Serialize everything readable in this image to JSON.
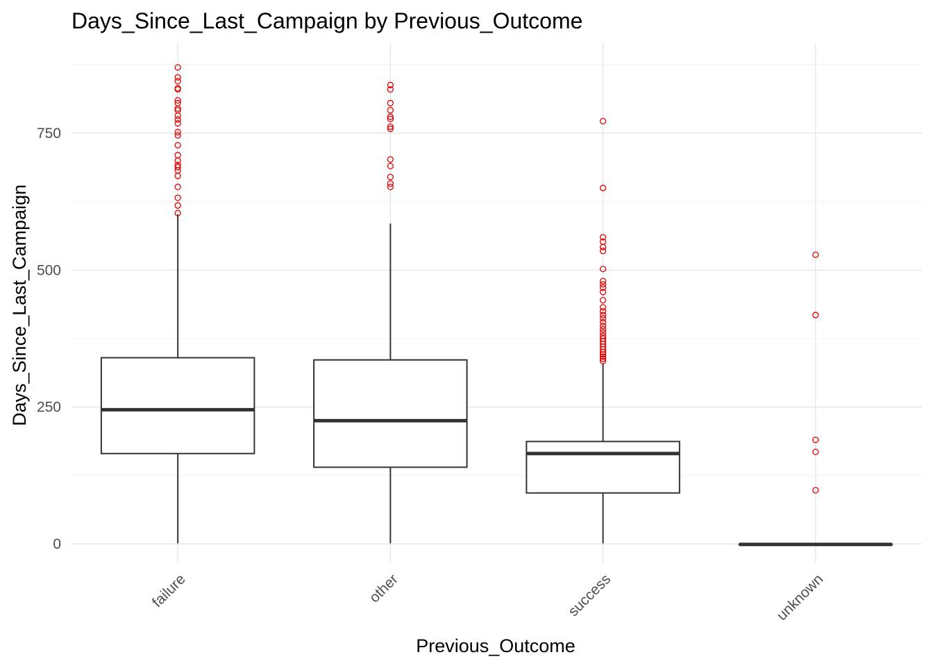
{
  "chart_data": {
    "type": "box",
    "title": "Days_Since_Last_Campaign by Previous_Outcome",
    "xlabel": "Previous_Outcome",
    "ylabel": "Days_Since_Last_Campaign",
    "ylim": [
      -40,
      880
    ],
    "yticks": [
      0,
      250,
      500,
      750
    ],
    "grid": true,
    "outlier_color": "#e00000",
    "box_color": "#333333",
    "categories": [
      "failure",
      "other",
      "success",
      "unknown"
    ],
    "boxes": [
      {
        "category": "failure",
        "whisker_low": 1,
        "q1": 165,
        "median": 245,
        "q3": 340,
        "whisker_high": 602,
        "outliers": [
          604,
          618,
          632,
          652,
          672,
          682,
          688,
          692,
          700,
          710,
          728,
          746,
          752,
          768,
          775,
          782,
          792,
          795,
          805,
          810,
          830,
          832,
          845,
          852,
          870
        ]
      },
      {
        "category": "other",
        "whisker_low": 1,
        "q1": 140,
        "median": 225,
        "q3": 336,
        "whisker_high": 585,
        "outliers": [
          652,
          658,
          670,
          690,
          702,
          758,
          762,
          776,
          780,
          792,
          805,
          830,
          838
        ]
      },
      {
        "category": "success",
        "whisker_low": 1,
        "q1": 93,
        "median": 165,
        "q3": 187,
        "whisker_high": 330,
        "outliers": [
          334,
          338,
          342,
          346,
          350,
          355,
          360,
          365,
          370,
          375,
          380,
          386,
          392,
          398,
          405,
          412,
          418,
          425,
          432,
          445,
          460,
          468,
          474,
          480,
          502,
          535,
          542,
          552,
          560,
          650,
          772
        ]
      },
      {
        "category": "unknown",
        "whisker_low": -1,
        "q1": -1,
        "median": -1,
        "q3": -1,
        "whisker_high": -1,
        "outliers": [
          98,
          168,
          190,
          418,
          528
        ]
      }
    ]
  }
}
